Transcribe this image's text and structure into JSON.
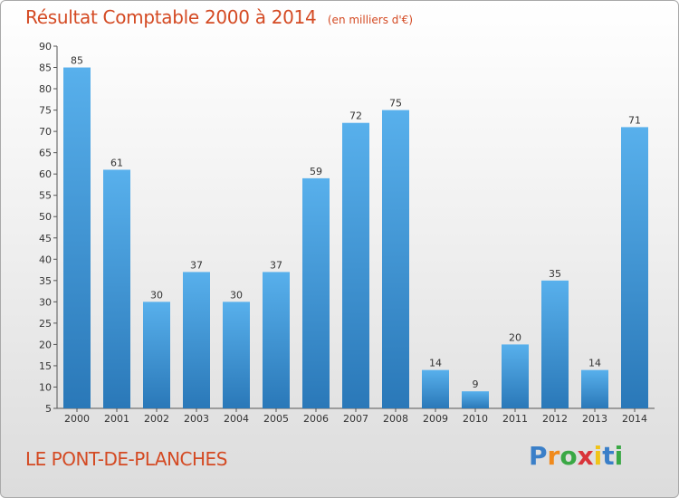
{
  "title": "Résultat Comptable 2000 à 2014",
  "subtitle": "(en milliers d'€)",
  "commune": "LE PONT-DE-PLANCHES",
  "logo": {
    "letters": [
      "P",
      "r",
      "o",
      "x",
      "i",
      "t",
      "i"
    ],
    "colors": [
      "#3a7fc8",
      "#f08a1c",
      "#3aa845",
      "#d9343a",
      "#f0c419",
      "#3a7fc8",
      "#3aa845"
    ]
  },
  "colors": {
    "bar": "#4aa3e2",
    "bar_dark": "#2f7fc0",
    "text_accent": "#d44a23"
  },
  "chart_data": {
    "type": "bar",
    "title": "Résultat Comptable 2000 à 2014",
    "ylabel": "en milliers d'€",
    "xlabel": "",
    "categories": [
      "2000",
      "2001",
      "2002",
      "2003",
      "2004",
      "2005",
      "2006",
      "2007",
      "2008",
      "2009",
      "2010",
      "2011",
      "2012",
      "2013",
      "2014"
    ],
    "values": [
      85,
      61,
      30,
      37,
      30,
      37,
      59,
      72,
      75,
      14,
      9,
      20,
      35,
      14,
      71
    ],
    "ylim": [
      5,
      90
    ],
    "yticks": [
      5,
      10,
      15,
      20,
      25,
      30,
      35,
      40,
      45,
      50,
      55,
      60,
      65,
      70,
      75,
      80,
      85,
      90
    ],
    "grid": false,
    "legend": "none"
  }
}
